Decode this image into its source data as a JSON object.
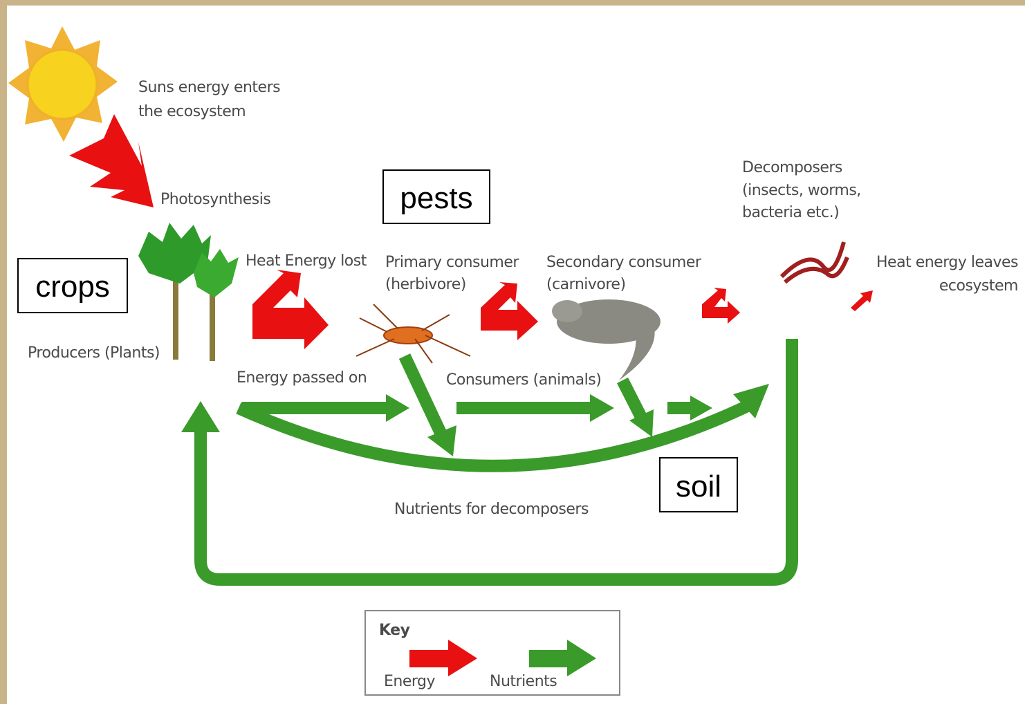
{
  "boxes": {
    "crops": "crops",
    "pests": "pests",
    "soil": "soil"
  },
  "labels": {
    "sun": [
      "Suns energy enters",
      "the ecosystem"
    ],
    "photosynthesis": "Photosynthesis",
    "producers": "Producers (Plants)",
    "heat_lost": "Heat Energy lost",
    "primary": [
      "Primary consumer",
      "(herbivore)"
    ],
    "secondary": [
      "Secondary consumer",
      "(carnivore)"
    ],
    "decomposers": [
      "Decomposers",
      "(insects, worms,",
      "bacteria etc.)"
    ],
    "heat_leaves": [
      "Heat energy leaves",
      "ecosystem"
    ],
    "energy_passed": "Energy passed on",
    "consumers": "Consumers (animals)",
    "nutrients": "Nutrients for decomposers"
  },
  "key": {
    "title": "Key",
    "energy": "Energy",
    "nutrients": "Nutrients"
  }
}
